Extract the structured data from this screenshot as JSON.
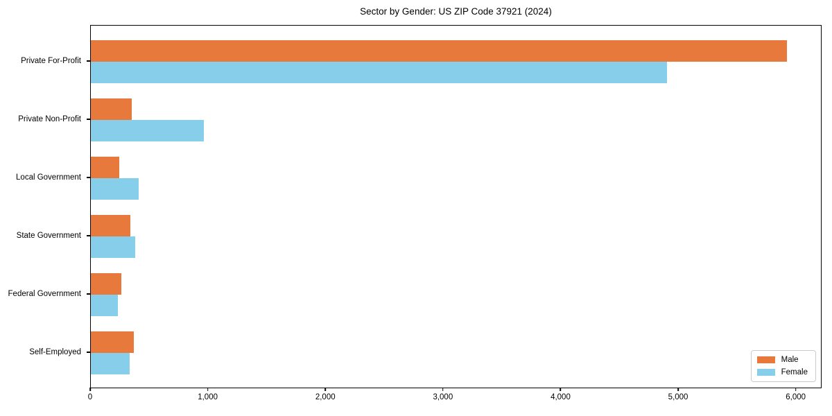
{
  "chart_data": {
    "type": "bar",
    "orientation": "horizontal",
    "title": "Sector by Gender: US ZIP Code 37921 (2024)",
    "categories": [
      "Private For-Profit",
      "Private Non-Profit",
      "Local Government",
      "State Government",
      "Federal Government",
      "Self-Employed"
    ],
    "series": [
      {
        "name": "Male",
        "color": "#E8793D",
        "values": [
          5930,
          350,
          240,
          335,
          260,
          365
        ]
      },
      {
        "name": "Female",
        "color": "#87CEEB",
        "values": [
          4910,
          960,
          405,
          380,
          230,
          330
        ]
      }
    ],
    "xlabel": "",
    "ylabel": "",
    "xlim": [
      0,
      6220
    ],
    "xticks": [
      0,
      1000,
      2000,
      3000,
      4000,
      5000,
      6000
    ],
    "xtick_labels": [
      "0",
      "1,000",
      "2,000",
      "3,000",
      "4,000",
      "5,000",
      "6,000"
    ],
    "grid": false,
    "legend_position": "lower right",
    "axis_color": "#000000",
    "background_color": "#ffffff"
  }
}
